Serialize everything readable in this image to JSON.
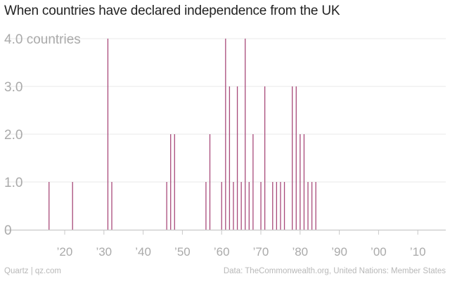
{
  "title": "When countries have declared independence from the UK",
  "footer": {
    "credit": "Quartz | qz.com",
    "source": "Data: TheCommonwealth.org, United Nations: Member States"
  },
  "colors": {
    "bar": "#a84a7a",
    "grid": "#e8e8e8",
    "axis": "#cccccc",
    "tick_text": "#aaaaaa",
    "baseline": "#c8c8c8"
  },
  "chart_data": {
    "type": "bar",
    "title": "When countries have declared independence from the UK",
    "xlabel": "",
    "ylabel": "countries",
    "ylim": [
      0,
      4
    ],
    "xlim": [
      1911,
      2017
    ],
    "y_ticks": [
      {
        "value": 0,
        "label": "0"
      },
      {
        "value": 1,
        "label": "1.0"
      },
      {
        "value": 2,
        "label": "2.0"
      },
      {
        "value": 3,
        "label": "3.0"
      },
      {
        "value": 4,
        "label": "4.0 countries"
      }
    ],
    "x_ticks": [
      {
        "value": 1920,
        "label": "’20"
      },
      {
        "value": 1930,
        "label": "’30"
      },
      {
        "value": 1940,
        "label": "’40"
      },
      {
        "value": 1950,
        "label": "’50"
      },
      {
        "value": 1960,
        "label": "’60"
      },
      {
        "value": 1970,
        "label": "’70"
      },
      {
        "value": 1980,
        "label": "’80"
      },
      {
        "value": 1990,
        "label": "’90"
      },
      {
        "value": 2000,
        "label": "’00"
      },
      {
        "value": 2010,
        "label": "’10"
      }
    ],
    "x": [
      1916,
      1922,
      1931,
      1932,
      1946,
      1947,
      1948,
      1956,
      1957,
      1960,
      1961,
      1962,
      1963,
      1964,
      1965,
      1966,
      1967,
      1968,
      1970,
      1971,
      1973,
      1974,
      1975,
      1976,
      1978,
      1979,
      1980,
      1981,
      1982,
      1983,
      1984
    ],
    "values": [
      1,
      1,
      4,
      1,
      1,
      2,
      2,
      1,
      2,
      1,
      4,
      3,
      1,
      3,
      1,
      4,
      1,
      2,
      1,
      3,
      1,
      1,
      1,
      1,
      3,
      3,
      2,
      2,
      1,
      1,
      1
    ]
  }
}
